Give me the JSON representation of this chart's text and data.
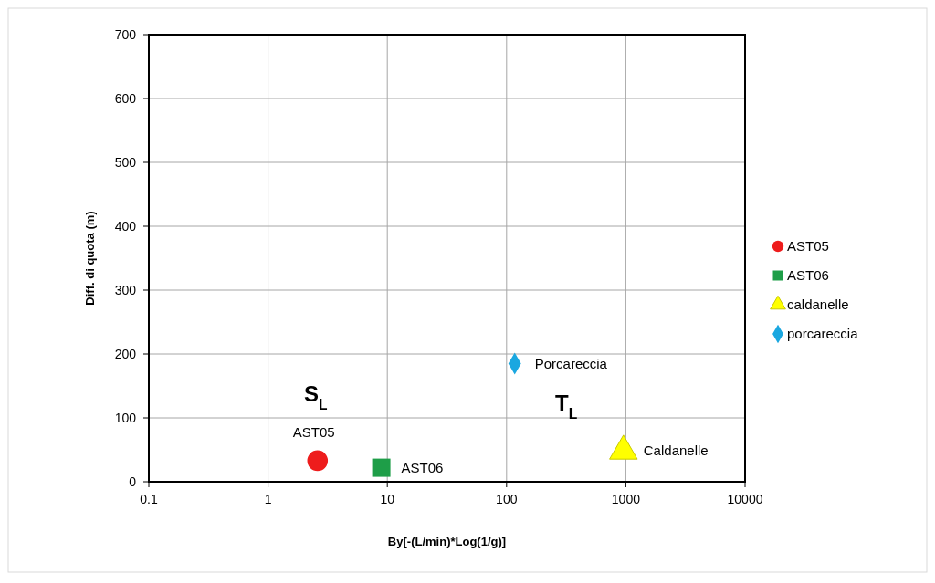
{
  "chart_data": {
    "type": "scatter",
    "xlabel": "By[-(L/min)*Log(1/g)]",
    "ylabel": "Diff. di quota (m)",
    "log": "x",
    "grid": true,
    "legend": "right",
    "xlim": [
      0.1,
      10000
    ],
    "xticks": [
      0.1,
      1,
      10,
      100,
      1000,
      10000
    ],
    "ylim": [
      0,
      700
    ],
    "yticks": [
      0,
      100,
      200,
      300,
      400,
      500,
      600,
      700
    ],
    "series": [
      {
        "name": "AST05",
        "color": "#ee1c1c",
        "marker": "circle",
        "x": [
          2.6
        ],
        "values": [
          33
        ]
      },
      {
        "name": "AST06",
        "color": "#1e9e48",
        "marker": "square",
        "x": [
          8.9
        ],
        "values": [
          22
        ]
      },
      {
        "name": "caldanelle",
        "color": "#ffff00",
        "marker": "triangle",
        "x": [
          955
        ],
        "values": [
          48
        ]
      },
      {
        "name": "porcareccia",
        "color": "#1aa7e0",
        "marker": "diamond",
        "x": [
          117
        ],
        "values": [
          185
        ]
      }
    ],
    "annotations": [
      {
        "text": "AST05",
        "x": 2.6,
        "y": 33
      },
      {
        "text": "AST06",
        "x": 8.9,
        "y": 22
      },
      {
        "text": "Caldanelle",
        "x": 955,
        "y": 48
      },
      {
        "text": "Porcareccia",
        "x": 117,
        "y": 185
      },
      "S$_{L}$",
      "T$_{L}$"
    ]
  }
}
